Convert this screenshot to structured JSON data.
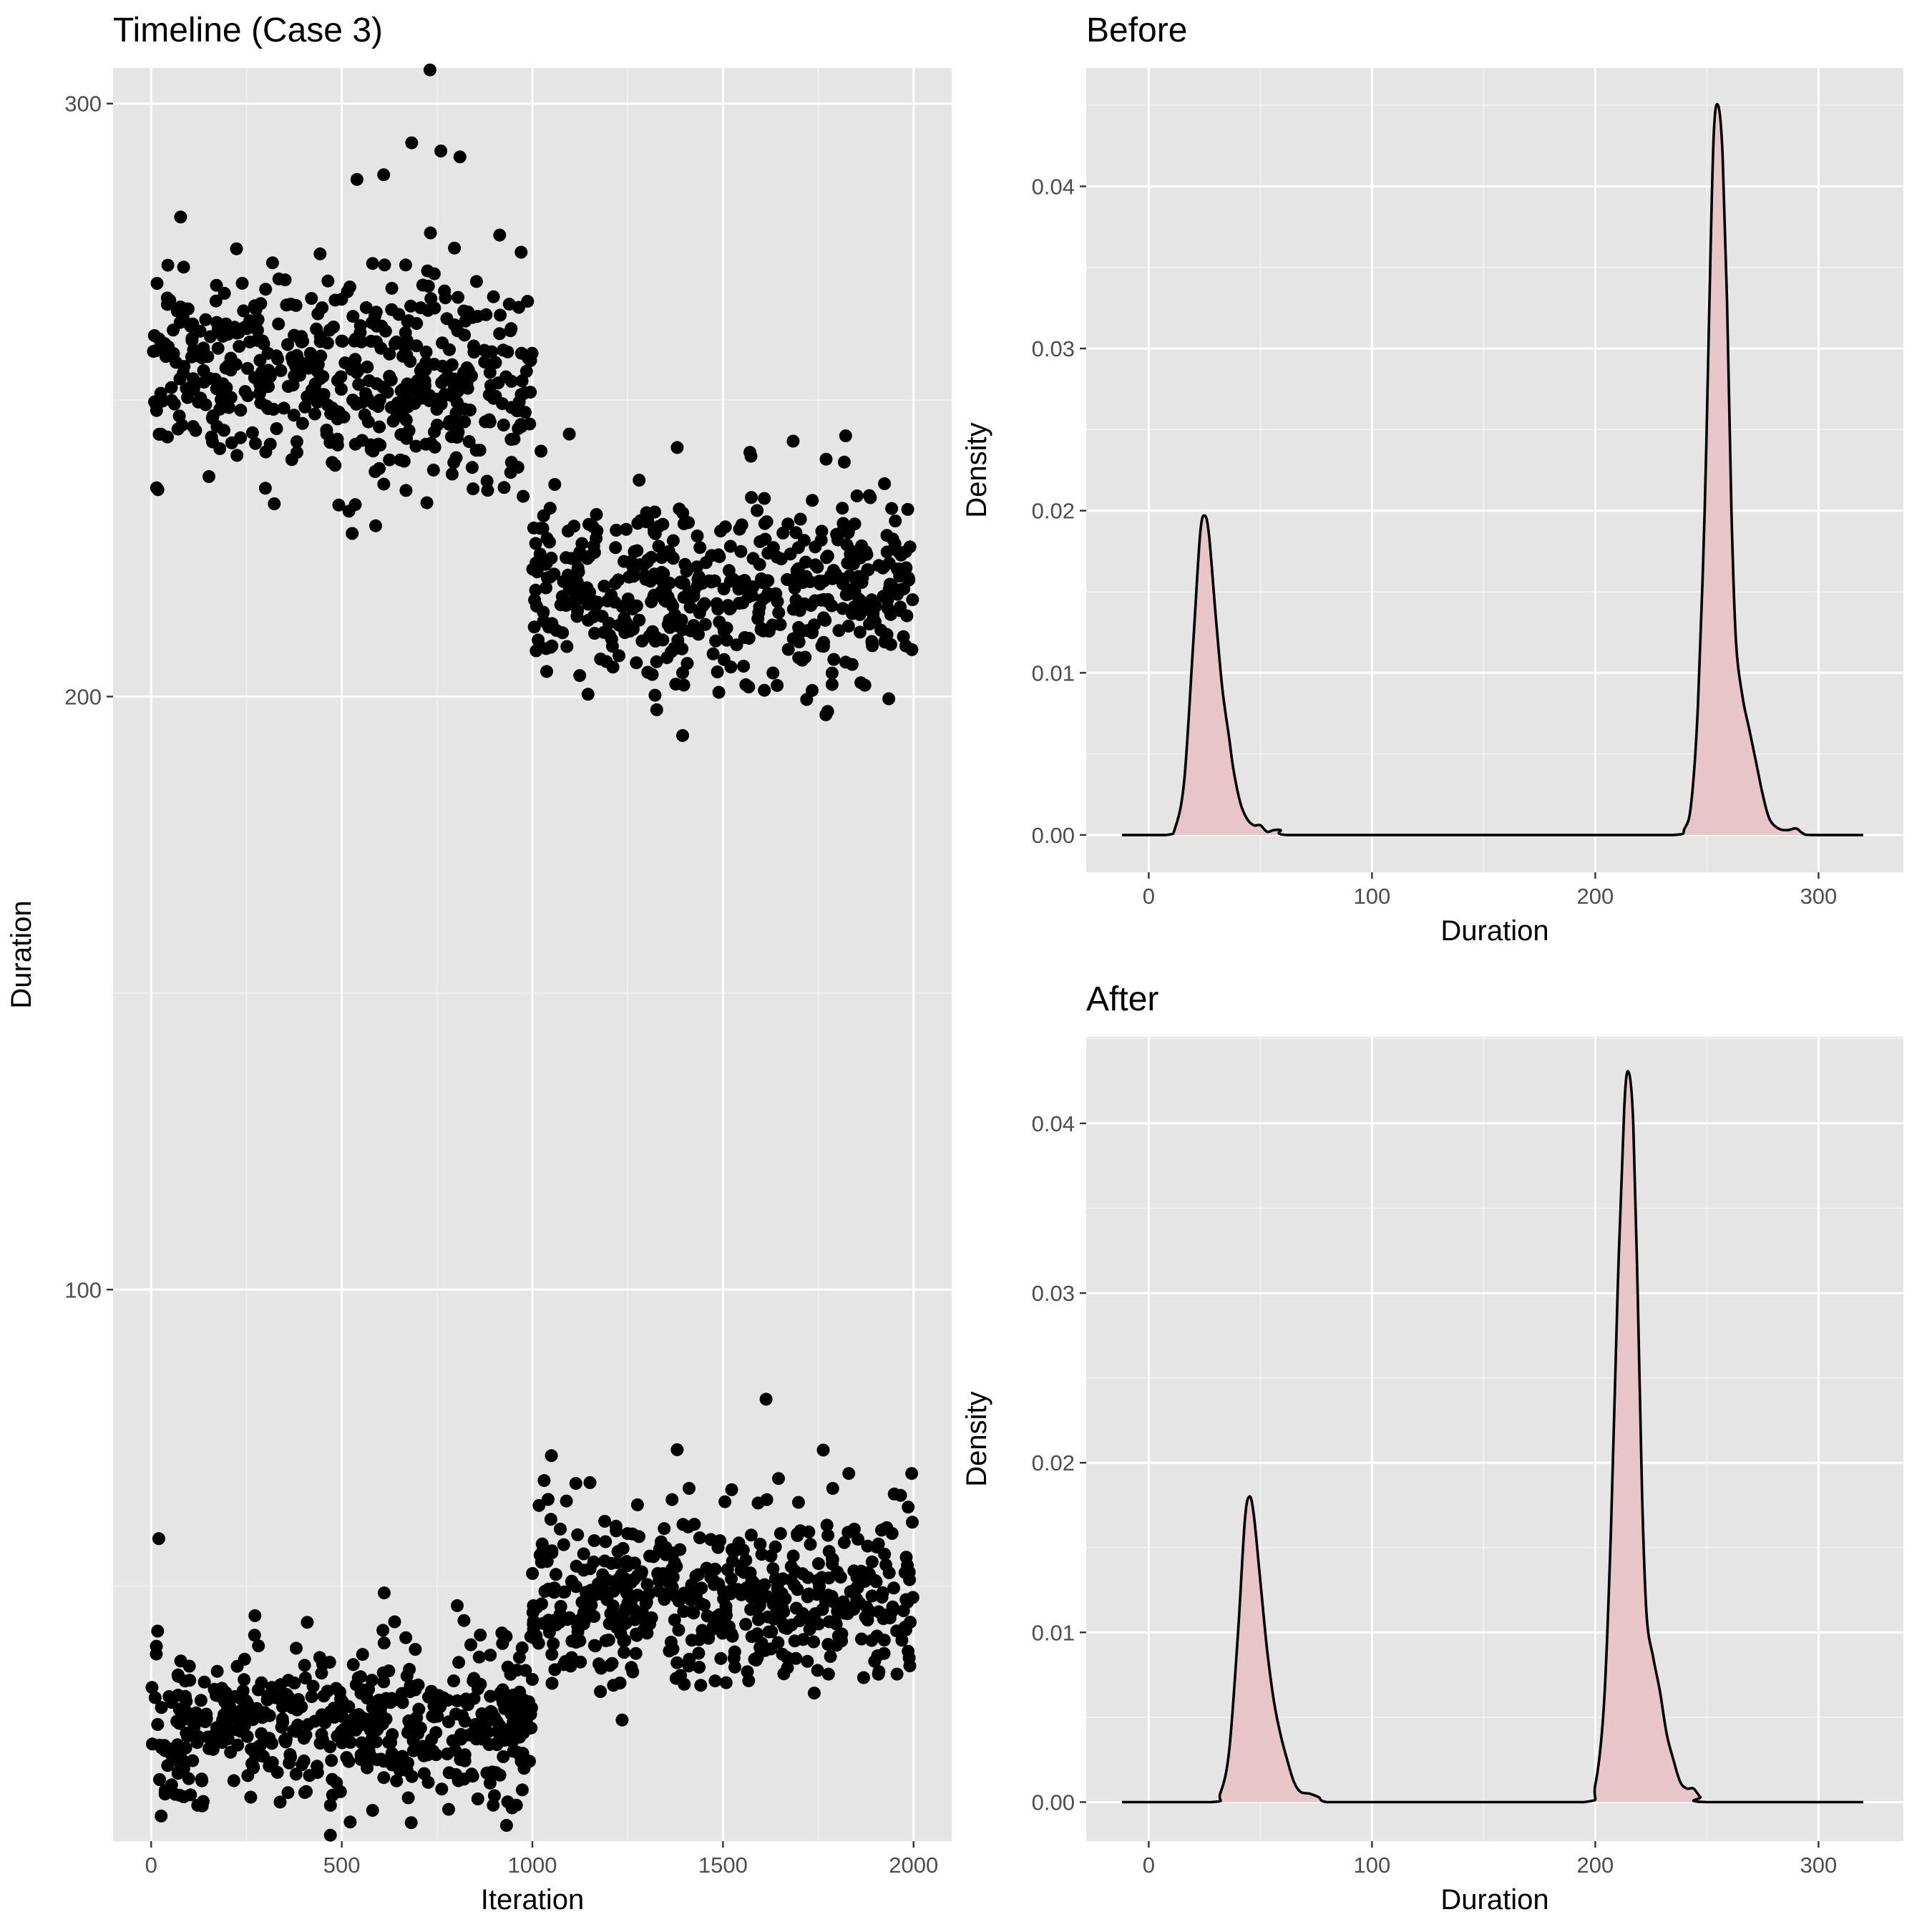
{
  "chart_data": [
    {
      "type": "scatter",
      "title": "Timeline (Case 3)",
      "xlabel": "Iteration",
      "ylabel": "Duration",
      "xlim": [
        -100,
        2100
      ],
      "ylim": [
        7,
        306
      ],
      "x_ticks": [
        0,
        500,
        1000,
        1500,
        2000
      ],
      "y_ticks": [
        100,
        200,
        300
      ],
      "grid": true,
      "point_color": "#000000",
      "groups": [
        {
          "x_range": [
            0,
            1000
          ],
          "y_mean": 253,
          "y_sd": 8.5,
          "n": 500
        },
        {
          "x_range": [
            0,
            1000
          ],
          "y_mean": 26,
          "y_sd": 6.5,
          "n": 500
        },
        {
          "x_range": [
            1000,
            2000
          ],
          "y_mean": 217,
          "y_sd": 7.5,
          "n": 500
        },
        {
          "x_range": [
            1000,
            2000
          ],
          "y_mean": 47,
          "y_sd": 7,
          "n": 500
        }
      ],
      "notable_points": [
        {
          "x": 760,
          "y": 292
        },
        {
          "x": 810,
          "y": 291
        },
        {
          "x": 610,
          "y": 288
        },
        {
          "x": 1380,
          "y": 73
        },
        {
          "x": 1050,
          "y": 72
        },
        {
          "x": 1995,
          "y": 69
        },
        {
          "x": 1830,
          "y": 69
        },
        {
          "x": 20,
          "y": 58
        },
        {
          "x": 1380,
          "y": 242
        },
        {
          "x": 1560,
          "y": 202
        },
        {
          "x": 470,
          "y": 8
        }
      ]
    },
    {
      "type": "area",
      "title": "Before",
      "xlabel": "Duration",
      "ylabel": "Density",
      "xlim": [
        -28,
        338
      ],
      "ylim": [
        -0.0023,
        0.0473
      ],
      "x_ticks": [
        0,
        100,
        200,
        300
      ],
      "y_ticks": [
        0.0,
        0.01,
        0.02,
        0.03,
        0.04
      ],
      "y_tick_labels": [
        "0.00",
        "0.01",
        "0.02",
        "0.03",
        "0.04"
      ],
      "fill": "#e8c5c9",
      "line": "#000000",
      "x": [
        -12,
        8,
        12,
        16,
        20,
        23,
        25,
        27,
        30,
        33,
        36,
        38,
        41,
        44,
        47,
        50,
        53,
        56,
        59,
        62,
        100,
        150,
        200,
        235,
        240,
        243,
        246,
        249,
        251,
        253,
        255,
        257,
        259,
        261,
        263,
        266,
        269,
        272,
        275,
        278,
        282,
        286,
        290,
        293,
        297,
        320
      ],
      "y": [
        0,
        0,
        0.0005,
        0.0035,
        0.012,
        0.0185,
        0.0197,
        0.0185,
        0.0135,
        0.009,
        0.006,
        0.004,
        0.002,
        0.001,
        0.0006,
        0.0006,
        0.0002,
        0.0003,
        0.0003,
        0,
        0,
        0,
        0,
        0,
        0.0004,
        0.002,
        0.008,
        0.02,
        0.032,
        0.043,
        0.045,
        0.042,
        0.033,
        0.02,
        0.012,
        0.0085,
        0.0065,
        0.0045,
        0.0025,
        0.001,
        0.0004,
        0.0003,
        0.0004,
        0.0001,
        0,
        0
      ]
    },
    {
      "type": "area",
      "title": "After",
      "xlabel": "Duration",
      "ylabel": "Density",
      "xlim": [
        -28,
        338
      ],
      "ylim": [
        -0.0023,
        0.0451
      ],
      "x_ticks": [
        0,
        100,
        200,
        300
      ],
      "y_ticks": [
        0.0,
        0.01,
        0.02,
        0.03,
        0.04
      ],
      "y_tick_labels": [
        "0.00",
        "0.01",
        "0.02",
        "0.03",
        "0.04"
      ],
      "fill": "#e8c5c9",
      "line": "#000000",
      "x": [
        -12,
        28,
        32,
        36,
        40,
        43,
        45,
        47,
        50,
        53,
        56,
        59,
        62,
        65,
        68,
        72,
        76,
        80,
        100,
        150,
        195,
        200,
        204,
        207,
        210,
        213,
        215,
        217,
        219,
        221,
        223,
        226,
        229,
        232,
        235,
        238,
        241,
        244,
        247,
        250,
        320
      ],
      "y": [
        0,
        0,
        0.0005,
        0.003,
        0.01,
        0.0165,
        0.018,
        0.017,
        0.013,
        0.009,
        0.006,
        0.004,
        0.0025,
        0.0012,
        0.0006,
        0.0005,
        0.0003,
        0,
        0,
        0,
        0,
        0.001,
        0.006,
        0.016,
        0.03,
        0.041,
        0.043,
        0.04,
        0.03,
        0.018,
        0.011,
        0.0085,
        0.0065,
        0.004,
        0.0025,
        0.0012,
        0.0008,
        0.0008,
        0.0003,
        0,
        0
      ]
    }
  ]
}
